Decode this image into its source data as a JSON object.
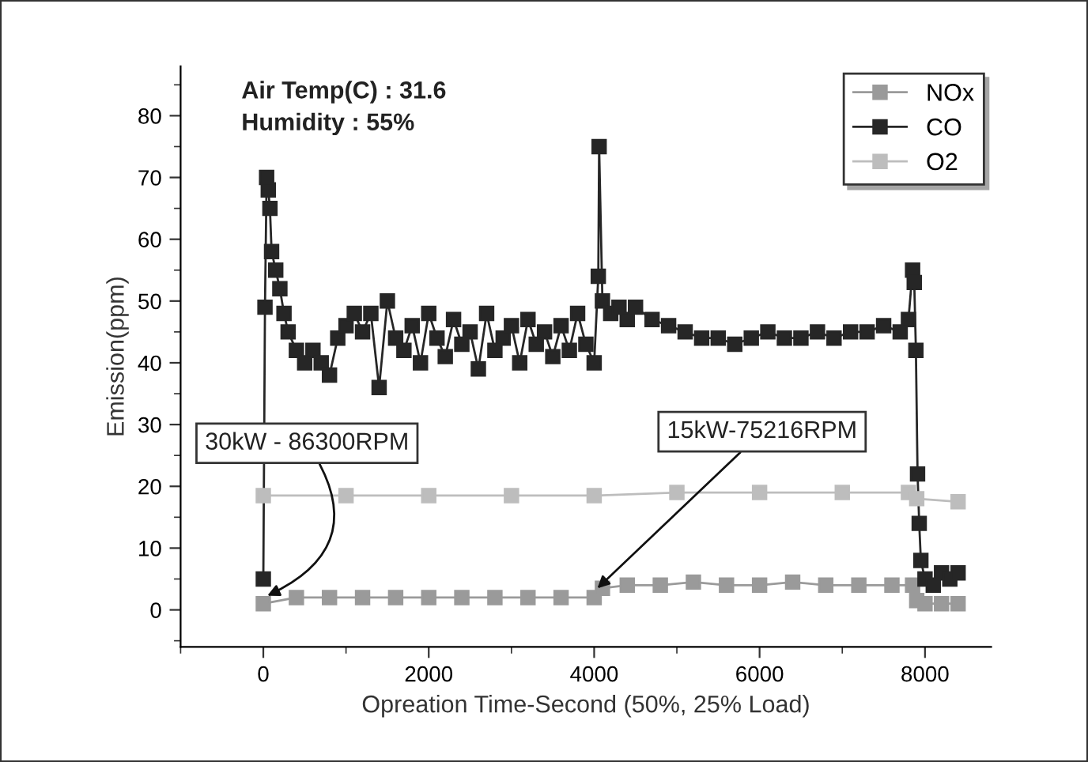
{
  "chart_data": {
    "type": "line",
    "xlabel": "Opreation Time-Second (50%, 25% Load)",
    "ylabel": "Emission(ppm)",
    "xlim": [
      -1000,
      8800
    ],
    "ylim": [
      -6,
      88
    ],
    "xticks": [
      0,
      2000,
      4000,
      6000,
      8000
    ],
    "yticks": [
      0,
      10,
      20,
      30,
      40,
      50,
      60,
      70,
      80
    ],
    "marker": "square",
    "line_style": "solid",
    "legend": "top right",
    "grid": false,
    "series": [
      {
        "name": "NOx",
        "color": "#9a9a9a",
        "x": [
          0,
          400,
          800,
          1200,
          1600,
          2000,
          2400,
          2800,
          3200,
          3600,
          4000,
          4100,
          4400,
          4800,
          5200,
          5600,
          6000,
          6400,
          6800,
          7200,
          7600,
          7850,
          7900,
          8000,
          8200,
          8400
        ],
        "values": [
          1,
          2,
          2,
          2,
          2,
          2,
          2,
          2,
          2,
          2,
          2,
          3.5,
          4,
          4,
          4.5,
          4,
          4,
          4.5,
          4,
          4,
          4,
          4,
          1.5,
          1,
          1,
          1
        ]
      },
      {
        "name": "CO",
        "color": "#262626",
        "x": [
          0,
          20,
          40,
          60,
          80,
          100,
          150,
          200,
          250,
          300,
          400,
          500,
          600,
          700,
          800,
          900,
          1000,
          1100,
          1200,
          1300,
          1400,
          1500,
          1600,
          1700,
          1800,
          1900,
          2000,
          2100,
          2200,
          2300,
          2400,
          2500,
          2600,
          2700,
          2800,
          2900,
          3000,
          3100,
          3200,
          3300,
          3400,
          3500,
          3600,
          3700,
          3800,
          3900,
          4000,
          4050,
          4060,
          4100,
          4200,
          4300,
          4400,
          4500,
          4700,
          4900,
          5100,
          5300,
          5500,
          5700,
          5900,
          6100,
          6300,
          6500,
          6700,
          6900,
          7100,
          7300,
          7500,
          7700,
          7800,
          7850,
          7870,
          7890,
          7910,
          7930,
          7950,
          8000,
          8100,
          8200,
          8300,
          8400
        ],
        "values": [
          5,
          49,
          70,
          68,
          65,
          58,
          55,
          52,
          48,
          45,
          42,
          40,
          42,
          40,
          38,
          44,
          46,
          48,
          45,
          48,
          36,
          50,
          44,
          42,
          46,
          40,
          48,
          44,
          41,
          47,
          43,
          45,
          39,
          48,
          42,
          44,
          46,
          40,
          47,
          43,
          45,
          41,
          46,
          42,
          48,
          43,
          40,
          54,
          75,
          50,
          48,
          49,
          47,
          49,
          47,
          46,
          45,
          44,
          44,
          43,
          44,
          45,
          44,
          44,
          45,
          44,
          45,
          45,
          46,
          45,
          47,
          55,
          53,
          42,
          22,
          14,
          8,
          5,
          4,
          6,
          5,
          6
        ]
      },
      {
        "name": "O2",
        "color": "#bdbdbd",
        "x": [
          0,
          1000,
          2000,
          3000,
          4000,
          5000,
          6000,
          7000,
          7800,
          7900,
          8400
        ],
        "values": [
          18.5,
          18.5,
          18.5,
          18.5,
          18.5,
          19,
          19,
          19,
          19,
          18,
          17.5
        ]
      }
    ],
    "annotations": [
      "Air Temp(C) : 31.6",
      "Humidity : 55%",
      {
        "text": "30kW - 86300RPM",
        "x": 0,
        "y": 2
      },
      {
        "text": "15kW-75216RPM",
        "x": 4000,
        "y": 3
      }
    ]
  }
}
